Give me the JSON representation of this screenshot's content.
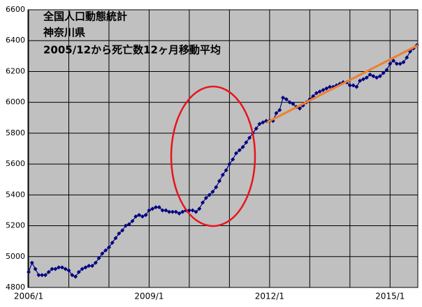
{
  "chart_data": {
    "type": "line",
    "title": [
      "全国人口動態統計",
      "神奈川県",
      "2005/12から死亡数12ヶ月移動平均"
    ],
    "categories": [
      "2006/1",
      null,
      null,
      null,
      null,
      null,
      null,
      null,
      null,
      null,
      null,
      null,
      null,
      null,
      null,
      null,
      null,
      null,
      null,
      null,
      null,
      null,
      null,
      null,
      null,
      null,
      null,
      null,
      null,
      null,
      null,
      null,
      null,
      null,
      null,
      null,
      "2009/1",
      null,
      null,
      null,
      null,
      null,
      null,
      null,
      null,
      null,
      null,
      null,
      null,
      null,
      null,
      null,
      null,
      null,
      null,
      null,
      null,
      null,
      null,
      null,
      null,
      null,
      null,
      null,
      null,
      null,
      null,
      null,
      null,
      null,
      null,
      null,
      "2012/1",
      null,
      null,
      null,
      null,
      null,
      null,
      null,
      null,
      null,
      null,
      null,
      null,
      null,
      null,
      null,
      null,
      null,
      null,
      null,
      null,
      null,
      null,
      null,
      null,
      null,
      null,
      null,
      null,
      null,
      null,
      null,
      null,
      null,
      null,
      null,
      "2015/1",
      null,
      null,
      null,
      null,
      null,
      null,
      null,
      null
    ],
    "series": [
      {
        "color": "#000080",
        "values": [
          4900,
          4960,
          4920,
          4880,
          4880,
          4880,
          4900,
          4920,
          4920,
          4930,
          4930,
          4920,
          4910,
          4880,
          4870,
          4900,
          4920,
          4930,
          4940,
          4940,
          4960,
          4990,
          5020,
          5040,
          5060,
          5090,
          5120,
          5150,
          5170,
          5200,
          5210,
          5230,
          5260,
          5270,
          5260,
          5270,
          5300,
          5310,
          5320,
          5320,
          5300,
          5300,
          5290,
          5290,
          5290,
          5280,
          5290,
          5300,
          5300,
          5300,
          5290,
          5310,
          5350,
          5380,
          5400,
          5420,
          5450,
          5490,
          5530,
          5560,
          5600,
          5630,
          5670,
          5690,
          5710,
          5740,
          5770,
          5800,
          5830,
          5860,
          5870,
          5880,
          5880,
          5880,
          5930,
          5950,
          6030,
          6020,
          6000,
          5990,
          5970,
          5960,
          5980,
          6000,
          6020,
          6040,
          6060,
          6070,
          6080,
          6090,
          6100,
          6100,
          6110,
          6120,
          6130,
          6130,
          6110,
          6110,
          6100,
          6140,
          6150,
          6160,
          6180,
          6170,
          6160,
          6170,
          6190,
          6210,
          6250,
          6270,
          6250,
          6250,
          6260,
          6290,
          6330,
          6350,
          6370
        ]
      }
    ],
    "trendline": {
      "color": "#f07f2a",
      "values": [
        5870,
        6370
      ]
    },
    "ylim": [
      4800,
      6600
    ],
    "yticks": [
      4800,
      5000,
      5200,
      5400,
      5600,
      5800,
      6000,
      6200,
      6400,
      6600
    ],
    "grid": true,
    "background": "#c0c0c0",
    "annotation_color": "#e8141c"
  }
}
